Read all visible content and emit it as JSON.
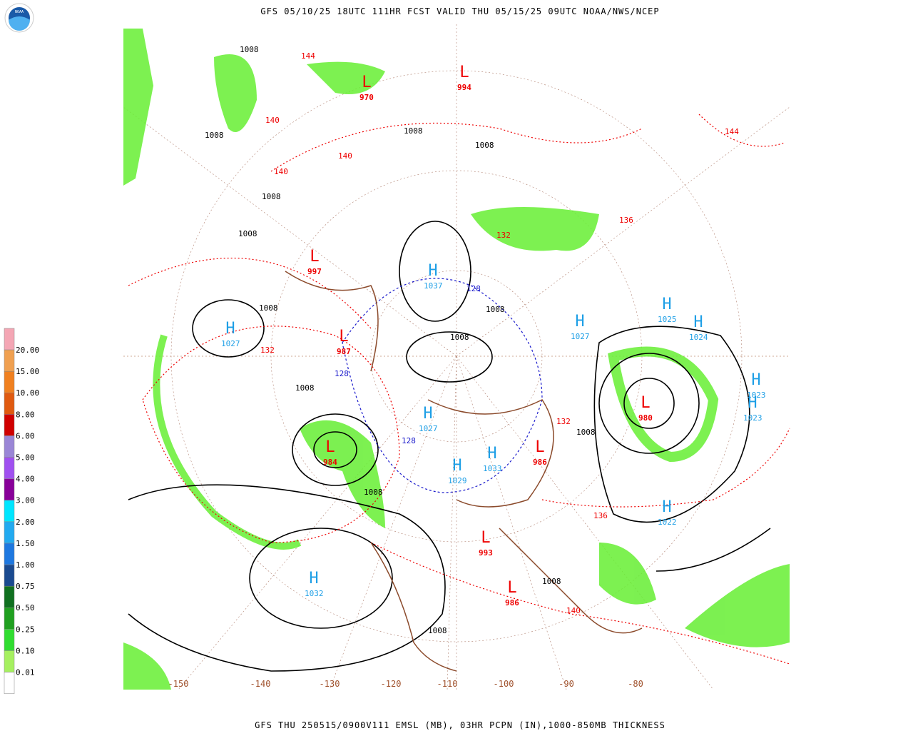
{
  "header": {
    "title": "GFS 05/10/25 18UTC 111HR FCST VALID THU 05/15/25 09UTC NOAA/NWS/NCEP",
    "logo": "NOAA"
  },
  "footer": {
    "caption": "GFS THU 250515/0900V111 EMSL (MB), 03HR PCPN (IN),1000-850MB THICKNESS"
  },
  "legend": {
    "labels": [
      "20.00",
      "15.00",
      "10.00",
      "8.00",
      "6.00",
      "5.00",
      "4.00",
      "3.00",
      "2.00",
      "1.50",
      "1.00",
      "0.75",
      "0.50",
      "0.25",
      "0.10",
      "0.01"
    ]
  },
  "map": {
    "longitude_labels": [
      "-150",
      "-140",
      "-130",
      "-120",
      "-110",
      "-100",
      "-90",
      "-80"
    ],
    "highs": [
      {
        "symbol": "H",
        "value": "1027"
      },
      {
        "symbol": "H",
        "value": "1032"
      },
      {
        "symbol": "H",
        "value": "1022"
      },
      {
        "symbol": "H",
        "value": "1023"
      },
      {
        "symbol": "H",
        "value": "1023"
      },
      {
        "symbol": "H",
        "value": "1024"
      },
      {
        "symbol": "H",
        "value": "1025"
      },
      {
        "symbol": "H",
        "value": "1027"
      },
      {
        "symbol": "H",
        "value": "1027"
      },
      {
        "symbol": "H",
        "value": "1029"
      },
      {
        "symbol": "H",
        "value": "1033"
      },
      {
        "symbol": "H",
        "value": "1037"
      }
    ],
    "lows": [
      {
        "symbol": "L",
        "value": "984"
      },
      {
        "symbol": "L",
        "value": "980"
      },
      {
        "symbol": "L",
        "value": "986"
      },
      {
        "symbol": "L",
        "value": "993"
      },
      {
        "symbol": "L",
        "value": "997"
      },
      {
        "symbol": "L",
        "value": "987"
      },
      {
        "symbol": "L",
        "value": "970"
      },
      {
        "symbol": "L",
        "value": "994"
      },
      {
        "symbol": "L",
        "value": "986"
      }
    ],
    "isobar_labels": [
      "1008",
      "1008",
      "1008",
      "1008",
      "1008",
      "1008",
      "1008",
      "1008",
      "1008",
      "1008",
      "1008",
      "1008",
      "1008",
      "1008"
    ],
    "thickness_labels": [
      "132",
      "132",
      "132",
      "136",
      "136",
      "140",
      "140",
      "140",
      "140",
      "144",
      "144",
      "128",
      "128",
      "128"
    ]
  }
}
